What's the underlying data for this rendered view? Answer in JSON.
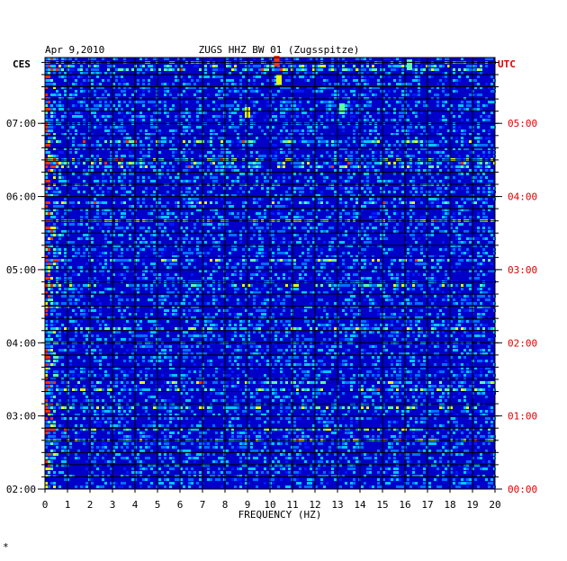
{
  "header": {
    "date": "Apr 9,2010",
    "station": "ZUGS HHZ BW 01 (Zugsspitze)",
    "left_zone": "CES",
    "right_zone": "UTC",
    "footer_mark": "*"
  },
  "chart_data": {
    "type": "heatmap",
    "title": "ZUGS HHZ BW 01 (Zugsspitze)",
    "xlabel": "FREQUENCY (HZ)",
    "ylabel": "",
    "xlim": [
      0,
      20
    ],
    "x_ticks": [
      0,
      1,
      2,
      3,
      4,
      5,
      6,
      7,
      8,
      9,
      10,
      11,
      12,
      13,
      14,
      15,
      16,
      17,
      18,
      19,
      20
    ],
    "y_left_label": "CES",
    "y_left_ticks": [
      {
        "label": "07:00",
        "hour_ces": 7
      },
      {
        "label": "06:00",
        "hour_ces": 6
      },
      {
        "label": "05:00",
        "hour_ces": 5
      },
      {
        "label": "04:00",
        "hour_ces": 4
      },
      {
        "label": "03:00",
        "hour_ces": 3
      },
      {
        "label": "02:00",
        "hour_ces": 2
      }
    ],
    "y_right_label": "UTC",
    "y_right_ticks": [
      {
        "label": "05:00",
        "hour_utc": 5
      },
      {
        "label": "04:00",
        "hour_utc": 4
      },
      {
        "label": "03:00",
        "hour_utc": 3
      },
      {
        "label": "02:00",
        "hour_utc": 2
      },
      {
        "label": "01:00",
        "hour_utc": 1
      },
      {
        "label": "00:00",
        "hour_utc": 0
      }
    ],
    "time_range_ces": [
      2.0,
      7.9
    ],
    "grid": true,
    "colors": {
      "background": "#0000c8",
      "low": "#0010ff",
      "mid": "#00c8ff",
      "high": "#c8ff00",
      "peak": "#ff2000",
      "right_axis_text": "#e00000",
      "grid": "#000000"
    },
    "features": [
      {
        "desc": "strong low-frequency band",
        "freq_range": [
          0.0,
          0.6
        ],
        "intensity": "high"
      },
      {
        "desc": "burst",
        "freq": 10.3,
        "hour_ces": 7.85,
        "intensity": "peak"
      },
      {
        "desc": "burst",
        "freq": 10.4,
        "hour_ces": 7.6,
        "intensity": "high"
      },
      {
        "desc": "burst",
        "freq": 9.0,
        "hour_ces": 7.15,
        "intensity": "high"
      },
      {
        "desc": "burst",
        "freq": 13.2,
        "hour_ces": 7.2,
        "intensity": "mid"
      },
      {
        "desc": "burst",
        "freq": 16.2,
        "hour_ces": 7.8,
        "intensity": "mid"
      }
    ]
  }
}
